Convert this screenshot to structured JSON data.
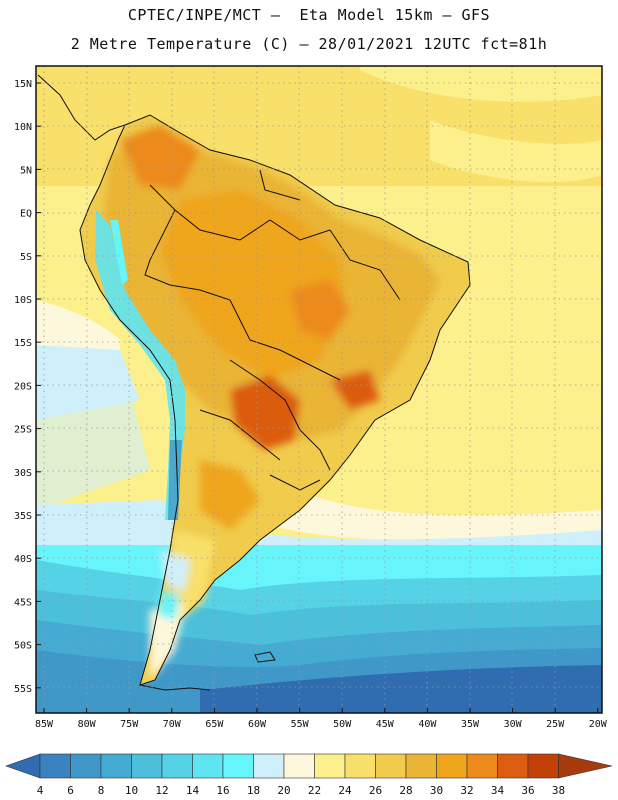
{
  "header": {
    "line1": "CPTEC/INPE/MCT –  Eta Model 15km – GFS",
    "line2": "2 Metre Temperature (C) – 28/01/2021 12UTC fct=81h"
  },
  "map": {
    "region": "South America",
    "lat_labels": [
      "15N",
      "10N",
      "5N",
      "EQ",
      "5S",
      "10S",
      "15S",
      "20S",
      "25S",
      "30S",
      "35S",
      "40S",
      "45S",
      "50S",
      "55S"
    ],
    "lon_labels": [
      "85W",
      "80W",
      "75W",
      "70W",
      "65W",
      "60W",
      "55W",
      "50W",
      "45W",
      "40W",
      "35W",
      "30W",
      "25W",
      "20W"
    ]
  },
  "colorbar": {
    "levels": [
      "4",
      "6",
      "8",
      "10",
      "12",
      "14",
      "16",
      "18",
      "20",
      "22",
      "24",
      "26",
      "28",
      "30",
      "32",
      "34",
      "36",
      "38"
    ],
    "colors": [
      "#2f6db0",
      "#3a82c0",
      "#3f98c8",
      "#45abd3",
      "#4cc0da",
      "#55d2e6",
      "#5fe4f2",
      "#67f4fa",
      "#cfeffb",
      "#fdf7dc",
      "#fbf08c",
      "#f8e06a",
      "#f0cb4c",
      "#eab436",
      "#efa51c",
      "#ec8a1c",
      "#dc5c10",
      "#c24006",
      "#a83a10"
    ]
  }
}
